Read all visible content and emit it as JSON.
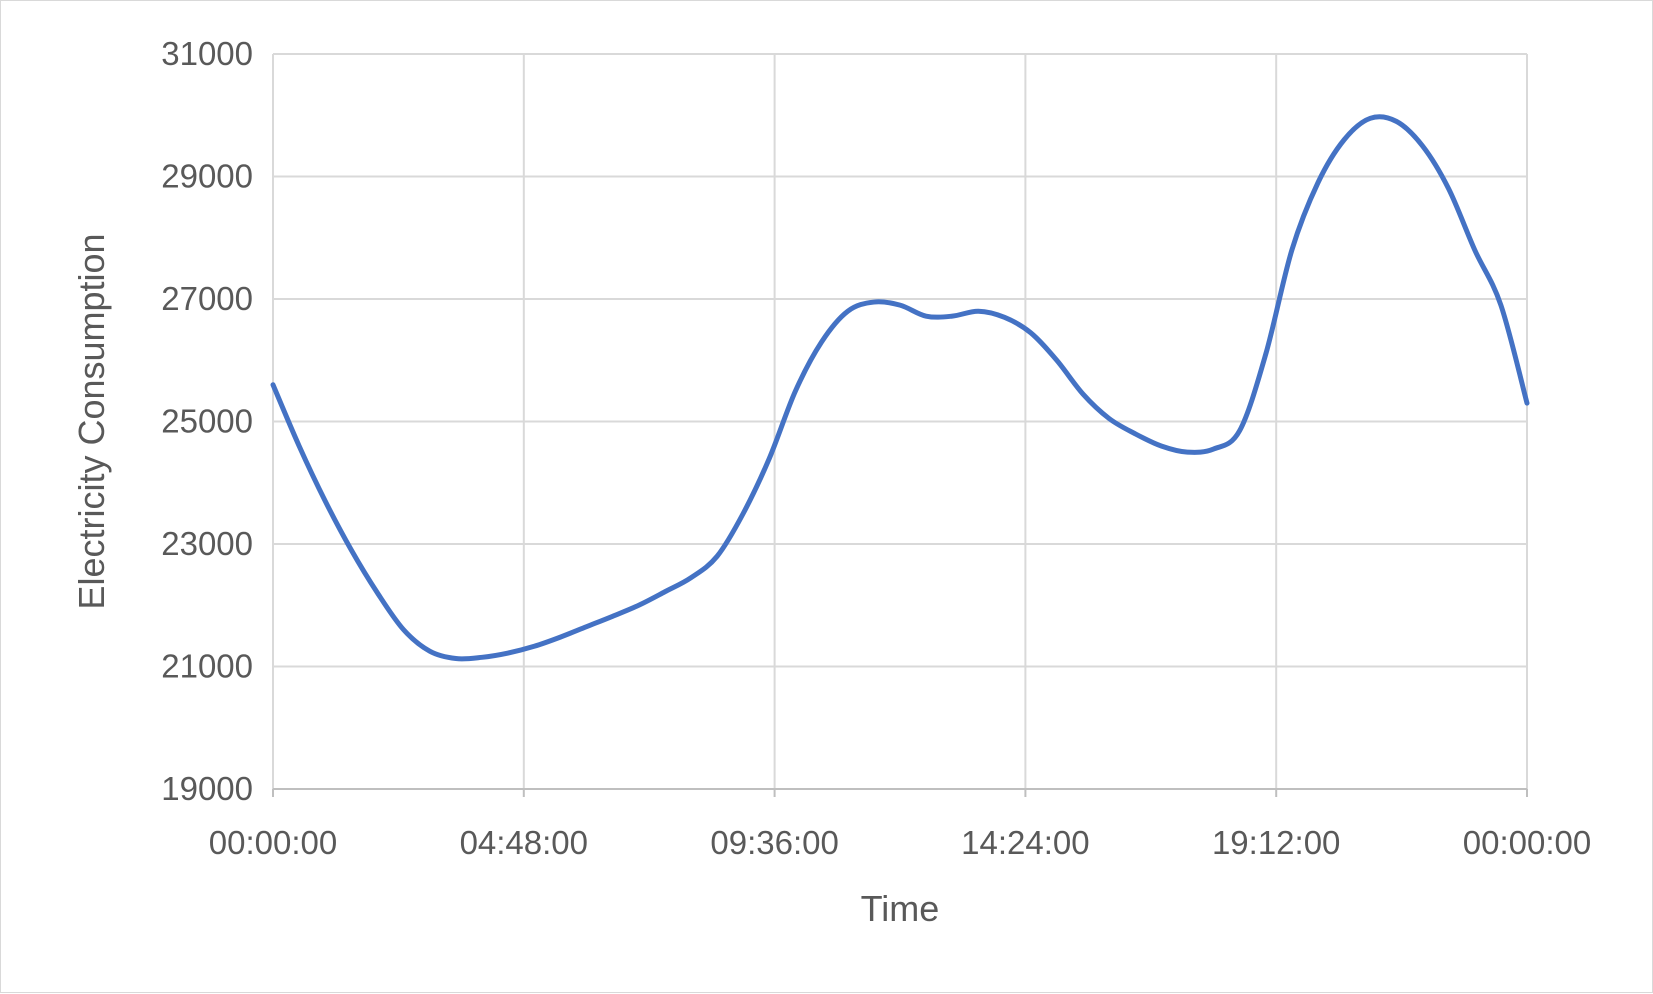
{
  "chart_data": {
    "type": "line",
    "title": "",
    "xlabel": "Time",
    "ylabel": "Electricity Consumption",
    "x_tick_labels": [
      "00:00:00",
      "04:48:00",
      "09:36:00",
      "14:24:00",
      "19:12:00",
      "00:00:00"
    ],
    "y_tick_labels": [
      "31000",
      "29000",
      "27000",
      "25000",
      "23000",
      "21000",
      "19000"
    ],
    "xlim": [
      0,
      24
    ],
    "ylim": [
      19000,
      31000
    ],
    "y_ticks": [
      31000,
      29000,
      27000,
      25000,
      23000,
      21000,
      19000
    ],
    "grid": true,
    "legend": "none",
    "series": [
      {
        "color": "#4472c4",
        "x": [
          0,
          0.5,
          1,
          1.5,
          2,
          2.5,
          3,
          3.5,
          4,
          4.5,
          5,
          5.5,
          6,
          6.5,
          7,
          7.5,
          8,
          8.5,
          9,
          9.5,
          10,
          10.5,
          11,
          11.5,
          12,
          12.5,
          13,
          13.5,
          14,
          14.5,
          15,
          15.5,
          16,
          16.5,
          17,
          17.5,
          18,
          18.5,
          19,
          19.5,
          20,
          20.5,
          21,
          21.5,
          22,
          22.5,
          23,
          23.5,
          24
        ],
        "y": [
          25600,
          24600,
          23700,
          22900,
          22200,
          21600,
          21250,
          21130,
          21150,
          21220,
          21330,
          21480,
          21650,
          21820,
          22000,
          22220,
          22450,
          22800,
          23500,
          24400,
          25500,
          26300,
          26800,
          26950,
          26900,
          26720,
          26720,
          26800,
          26700,
          26450,
          26000,
          25450,
          25050,
          24800,
          24600,
          24500,
          24550,
          24850,
          26100,
          27800,
          28900,
          29600,
          29950,
          29900,
          29500,
          28800,
          27800,
          26900,
          25300
        ]
      }
    ]
  }
}
